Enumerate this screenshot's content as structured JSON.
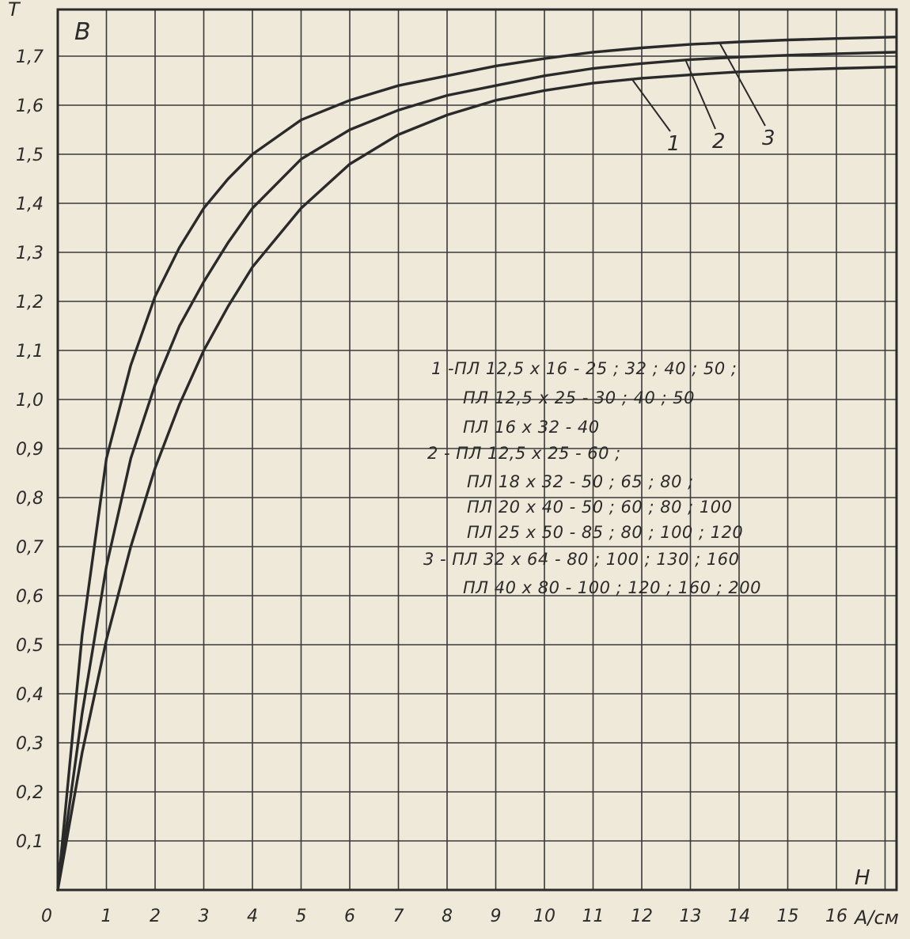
{
  "chart_data": {
    "type": "line",
    "ylabel": "B",
    "y_unit": "T",
    "xlabel": "H",
    "x_unit": "A/см",
    "origin_label": "0",
    "xlim": [
      0,
      17.2
    ],
    "ylim": [
      0,
      1.75
    ],
    "x_ticks": [
      "1",
      "2",
      "3",
      "4",
      "5",
      "6",
      "7",
      "8",
      "9",
      "10",
      "11",
      "12",
      "13",
      "14",
      "15",
      "16"
    ],
    "y_ticks": [
      "0,1",
      "0,2",
      "0,3",
      "0,4",
      "0,5",
      "0,6",
      "0,7",
      "0,8",
      "0,9",
      "1,0",
      "1,1",
      "1,2",
      "1,3",
      "1,4",
      "1,5",
      "1,6",
      "1,7"
    ],
    "grid": true,
    "series": [
      {
        "name": "1",
        "x": [
          0,
          0.5,
          1,
          1.5,
          2,
          2.5,
          3,
          3.5,
          4,
          5,
          6,
          7,
          8,
          9,
          10,
          11,
          12,
          13,
          14,
          15,
          16,
          17.2
        ],
        "y": [
          0,
          0.28,
          0.51,
          0.7,
          0.86,
          0.99,
          1.1,
          1.19,
          1.27,
          1.39,
          1.48,
          1.54,
          1.58,
          1.61,
          1.63,
          1.645,
          1.655,
          1.662,
          1.668,
          1.672,
          1.675,
          1.678
        ]
      },
      {
        "name": "2",
        "x": [
          0,
          0.5,
          1,
          1.5,
          2,
          2.5,
          3,
          3.5,
          4,
          5,
          6,
          7,
          8,
          9,
          10,
          11,
          12,
          13,
          14,
          15,
          16,
          17.2
        ],
        "y": [
          0,
          0.36,
          0.66,
          0.88,
          1.03,
          1.15,
          1.24,
          1.32,
          1.39,
          1.49,
          1.55,
          1.59,
          1.62,
          1.64,
          1.66,
          1.675,
          1.685,
          1.693,
          1.698,
          1.702,
          1.705,
          1.708
        ]
      },
      {
        "name": "3",
        "x": [
          0,
          0.5,
          1,
          1.5,
          2,
          2.5,
          3,
          3.5,
          4,
          5,
          6,
          7,
          8,
          9,
          10,
          11,
          12,
          13,
          14,
          15,
          16,
          17.2
        ],
        "y": [
          0,
          0.52,
          0.88,
          1.07,
          1.21,
          1.31,
          1.39,
          1.45,
          1.5,
          1.57,
          1.61,
          1.64,
          1.66,
          1.68,
          1.695,
          1.708,
          1.717,
          1.724,
          1.729,
          1.733,
          1.736,
          1.739
        ]
      }
    ],
    "legend": {
      "lines": [
        "1 -ПЛ 12,5 х 16 - 25 ; 32 ; 40 ; 50 ;",
        "ПЛ 12,5 х 25 - 30 ; 40 ; 50",
        "ПЛ 16 х 32 - 40",
        "2 - ПЛ 12,5 х 25 - 60 ;",
        "ПЛ 18 х 32 - 50 ; 65 ; 80 ;",
        "ПЛ 20 х 40 - 50 ; 60 ; 80 ; 100",
        "ПЛ 25 х 50 - 85 ; 80 ; 100 ; 120",
        "3 - ПЛ 32 х 64 - 80 ; 100 ; 130 ; 160",
        "ПЛ 40 х 80 - 100 ; 120 ; 160 ; 200"
      ]
    }
  }
}
